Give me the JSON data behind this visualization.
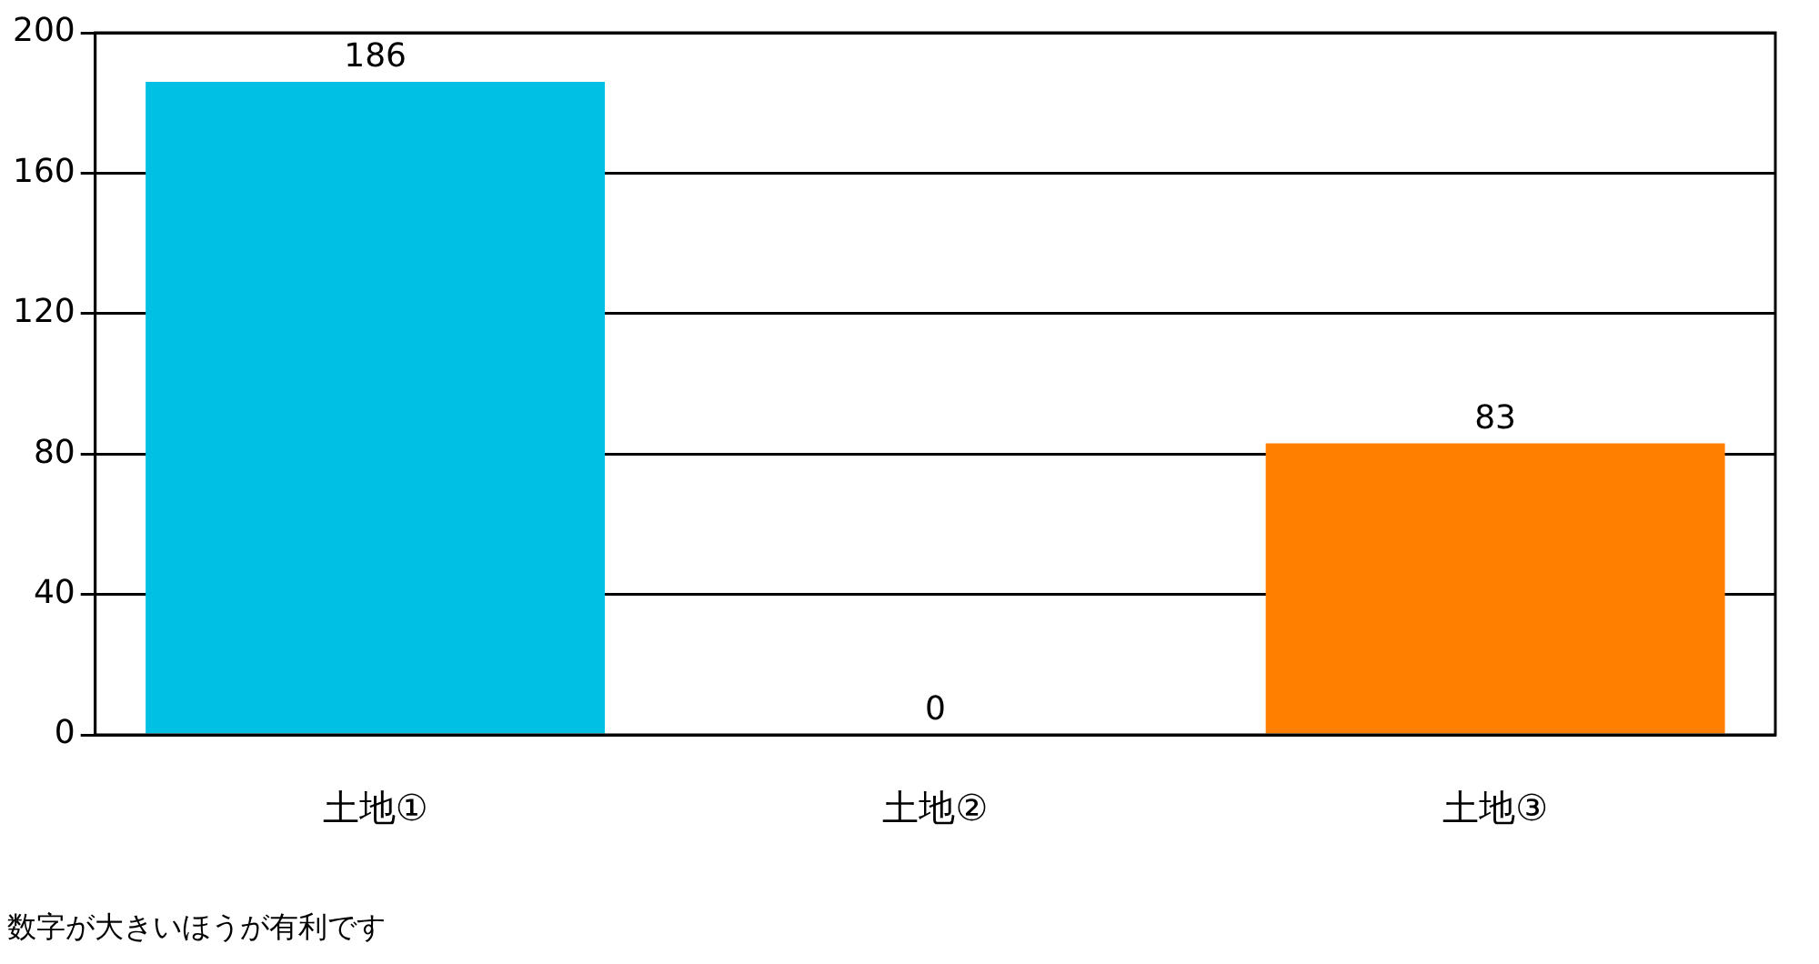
{
  "chart_data": {
    "type": "bar",
    "categories": [
      "土地①",
      "土地②",
      "土地③"
    ],
    "values": [
      186,
      0,
      83
    ],
    "colors": [
      "#00c0e4",
      "#92d050",
      "#ff8000"
    ],
    "ylim": [
      0,
      200
    ],
    "yticks": [
      0,
      40,
      80,
      120,
      160,
      200
    ],
    "grid": "y",
    "data_labels": true,
    "legend": false,
    "annotations": [
      "数字が大きいほうが有利です"
    ]
  }
}
